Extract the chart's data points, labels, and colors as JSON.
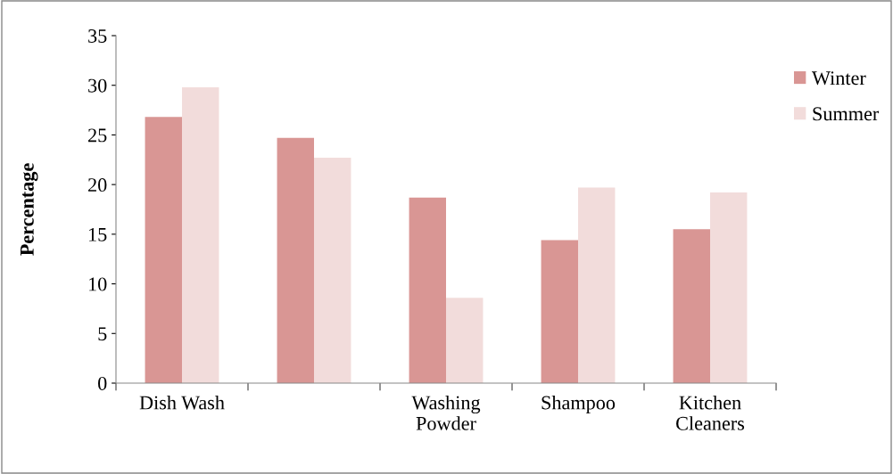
{
  "chart_data": {
    "type": "bar",
    "ylabel": "Percentage",
    "categories": [
      "Dish Wash",
      null,
      "Washing\nPowder",
      "Shampoo",
      "Kitchen\nCleaners"
    ],
    "series": [
      {
        "name": "Winter",
        "color": "#d99694",
        "values": [
          26.8,
          24.7,
          18.7,
          14.4,
          15.5
        ]
      },
      {
        "name": "Summer",
        "color": "#f2dcdb",
        "values": [
          29.8,
          22.7,
          8.6,
          19.7,
          19.2
        ]
      }
    ],
    "ylim": [
      0,
      35
    ],
    "yticks": [
      0,
      5,
      10,
      15,
      20,
      25,
      30,
      35
    ],
    "grid": false,
    "legend": "top right"
  }
}
